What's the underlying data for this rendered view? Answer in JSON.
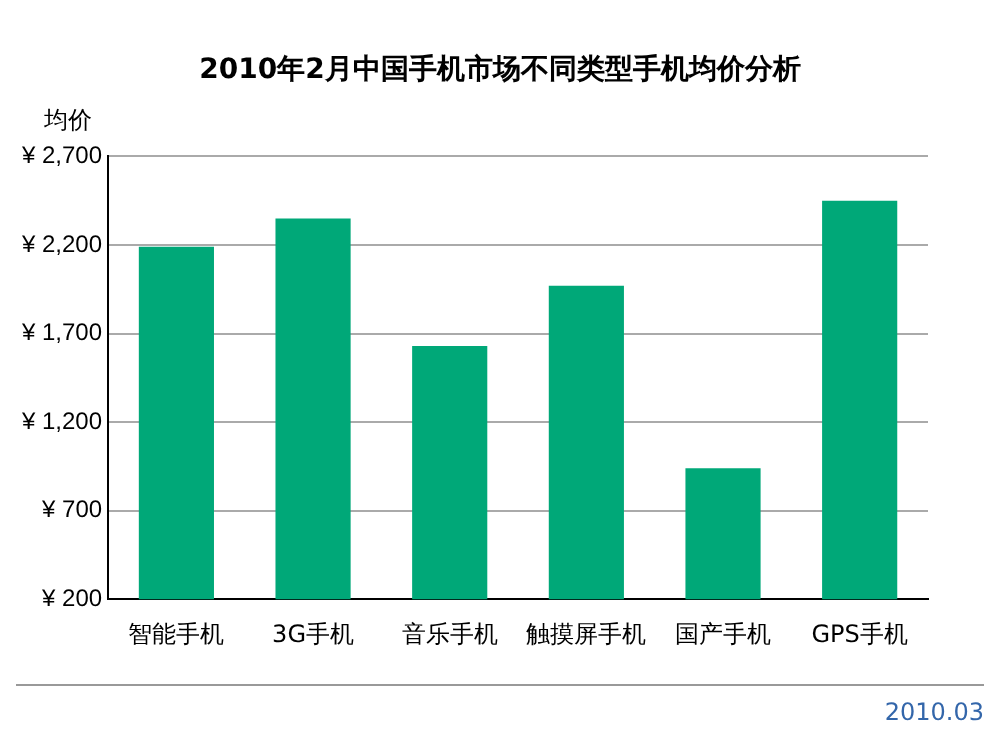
{
  "chart_data": {
    "type": "bar",
    "title": "2010年2月中国手机市场不同类型手机均价分析",
    "ylabel": "均价",
    "categories": [
      "智能手机",
      "3G手机",
      "音乐手机",
      "触摸屏手机",
      "国产手机",
      "GPS手机"
    ],
    "values": [
      2190,
      2350,
      1630,
      1970,
      940,
      2450
    ],
    "color": "#00a878",
    "ylim": [
      200,
      2700
    ],
    "yticks": [
      {
        "value": 200,
        "label": "¥ 200"
      },
      {
        "value": 700,
        "label": "¥ 700"
      },
      {
        "value": 1200,
        "label": "¥ 1,200"
      },
      {
        "value": 1700,
        "label": "¥ 1,700"
      },
      {
        "value": 2200,
        "label": "¥ 2,200"
      },
      {
        "value": 2700,
        "label": "¥ 2,700"
      }
    ],
    "grid": "y",
    "legend": false,
    "annotations": [
      "2010.03"
    ]
  }
}
